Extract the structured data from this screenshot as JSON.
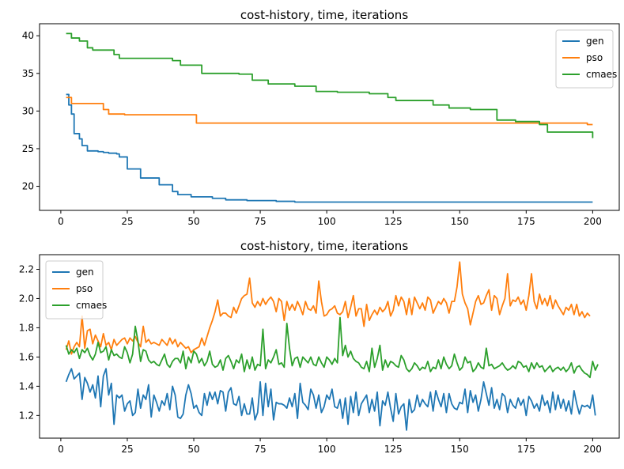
{
  "chart_data": [
    {
      "type": "line",
      "title": "cost-history, time, iterations",
      "xlabel": "",
      "ylabel": "",
      "xlim": [
        -8,
        210
      ],
      "ylim": [
        16.8,
        41.6
      ],
      "xticks": [
        "0",
        "25",
        "50",
        "75",
        "100",
        "125",
        "150",
        "175",
        "200"
      ],
      "yticks": [
        "20",
        "25",
        "30",
        "35",
        "40"
      ],
      "grid": false,
      "legend": "top-right",
      "series": [
        {
          "name": "gen",
          "color": "#1f77b4",
          "step": true,
          "points": [
            [
              2,
              32.2
            ],
            [
              3,
              30.8
            ],
            [
              4,
              29.6
            ],
            [
              5,
              27.0
            ],
            [
              7,
              26.3
            ],
            [
              8,
              25.4
            ],
            [
              10,
              24.7
            ],
            [
              14,
              24.6
            ],
            [
              16,
              24.5
            ],
            [
              18,
              24.4
            ],
            [
              21,
              24.3
            ],
            [
              22,
              23.9
            ],
            [
              25,
              22.3
            ],
            [
              30,
              21.1
            ],
            [
              37,
              20.2
            ],
            [
              42,
              19.3
            ],
            [
              44,
              18.9
            ],
            [
              49,
              18.6
            ],
            [
              57,
              18.4
            ],
            [
              62,
              18.2
            ],
            [
              70,
              18.1
            ],
            [
              81,
              18.0
            ],
            [
              88,
              17.9
            ],
            [
              200,
              17.9
            ]
          ]
        },
        {
          "name": "pso",
          "color": "#ff7f0e",
          "step": true,
          "points": [
            [
              2,
              31.8
            ],
            [
              4,
              31.0
            ],
            [
              16,
              30.2
            ],
            [
              18,
              29.6
            ],
            [
              24,
              29.5
            ],
            [
              51,
              28.4
            ],
            [
              198,
              28.2
            ],
            [
              200,
              28.2
            ]
          ]
        },
        {
          "name": "cmaes",
          "color": "#2ca02c",
          "step": true,
          "points": [
            [
              2,
              40.3
            ],
            [
              4,
              39.7
            ],
            [
              7,
              39.3
            ],
            [
              10,
              38.4
            ],
            [
              12,
              38.1
            ],
            [
              20,
              37.5
            ],
            [
              22,
              37.0
            ],
            [
              42,
              36.7
            ],
            [
              45,
              36.1
            ],
            [
              53,
              35.0
            ],
            [
              67,
              34.9
            ],
            [
              72,
              34.1
            ],
            [
              78,
              33.6
            ],
            [
              88,
              33.3
            ],
            [
              96,
              32.6
            ],
            [
              104,
              32.5
            ],
            [
              116,
              32.3
            ],
            [
              123,
              31.8
            ],
            [
              126,
              31.4
            ],
            [
              140,
              30.8
            ],
            [
              146,
              30.4
            ],
            [
              154,
              30.2
            ],
            [
              164,
              28.8
            ],
            [
              171,
              28.6
            ],
            [
              180,
              28.2
            ],
            [
              183,
              27.2
            ],
            [
              199,
              27.2
            ],
            [
              200,
              26.4
            ]
          ]
        }
      ]
    },
    {
      "type": "line",
      "title": "cost-history, time, iterations",
      "xlabel": "",
      "ylabel": "",
      "xlim": [
        -8,
        210
      ],
      "ylim": [
        1.045,
        2.3
      ],
      "xticks": [
        "0",
        "25",
        "50",
        "75",
        "100",
        "125",
        "150",
        "175",
        "200"
      ],
      "yticks": [
        "1.2",
        "1.4",
        "1.6",
        "1.8",
        "2.0",
        "2.2"
      ],
      "grid": false,
      "legend": "top-left",
      "x_start": 2,
      "series": [
        {
          "name": "gen",
          "color": "#1f77b4",
          "values": [
            1.43,
            1.48,
            1.52,
            1.45,
            1.47,
            1.49,
            1.31,
            1.46,
            1.42,
            1.36,
            1.41,
            1.32,
            1.47,
            1.26,
            1.47,
            1.52,
            1.34,
            1.42,
            1.14,
            1.34,
            1.32,
            1.34,
            1.23,
            1.28,
            1.3,
            1.2,
            1.22,
            1.38,
            1.25,
            1.34,
            1.31,
            1.41,
            1.19,
            1.34,
            1.29,
            1.23,
            1.3,
            1.27,
            1.35,
            1.24,
            1.4,
            1.34,
            1.19,
            1.18,
            1.21,
            1.34,
            1.41,
            1.35,
            1.25,
            1.27,
            1.22,
            1.2,
            1.35,
            1.27,
            1.36,
            1.31,
            1.36,
            1.28,
            1.37,
            1.36,
            1.23,
            1.36,
            1.39,
            1.28,
            1.27,
            1.33,
            1.2,
            1.28,
            1.21,
            1.21,
            1.32,
            1.17,
            1.22,
            1.43,
            1.2,
            1.42,
            1.26,
            1.38,
            1.17,
            1.29,
            1.28,
            1.28,
            1.27,
            1.25,
            1.32,
            1.26,
            1.35,
            1.18,
            1.42,
            1.29,
            1.27,
            1.24,
            1.38,
            1.34,
            1.25,
            1.34,
            1.22,
            1.26,
            1.34,
            1.31,
            1.38,
            1.26,
            1.25,
            1.31,
            1.18,
            1.32,
            1.14,
            1.33,
            1.22,
            1.36,
            1.2,
            1.28,
            1.31,
            1.34,
            1.22,
            1.31,
            1.23,
            1.36,
            1.13,
            1.3,
            1.27,
            1.36,
            1.25,
            1.16,
            1.35,
            1.21,
            1.26,
            1.28,
            1.1,
            1.31,
            1.22,
            1.24,
            1.34,
            1.26,
            1.31,
            1.28,
            1.26,
            1.36,
            1.23,
            1.37,
            1.31,
            1.26,
            1.35,
            1.22,
            1.35,
            1.28,
            1.25,
            1.24,
            1.29,
            1.28,
            1.38,
            1.22,
            1.37,
            1.29,
            1.34,
            1.23,
            1.31,
            1.43,
            1.35,
            1.27,
            1.39,
            1.25,
            1.31,
            1.24,
            1.35,
            1.33,
            1.22,
            1.31,
            1.27,
            1.25,
            1.32,
            1.27,
            1.31,
            1.2,
            1.33,
            1.3,
            1.25,
            1.28,
            1.23,
            1.34,
            1.27,
            1.3,
            1.22,
            1.36,
            1.24,
            1.34,
            1.25,
            1.31,
            1.23,
            1.3,
            1.21,
            1.37,
            1.28,
            1.21,
            1.27,
            1.26,
            1.27,
            1.25,
            1.34,
            1.2
          ]
        },
        {
          "name": "pso",
          "color": "#ff7f0e",
          "values": [
            1.65,
            1.71,
            1.62,
            1.67,
            1.7,
            1.67,
            1.88,
            1.66,
            1.78,
            1.79,
            1.69,
            1.75,
            1.71,
            1.67,
            1.76,
            1.68,
            1.7,
            1.65,
            1.72,
            1.68,
            1.7,
            1.72,
            1.73,
            1.69,
            1.73,
            1.71,
            1.74,
            1.7,
            1.67,
            1.81,
            1.7,
            1.72,
            1.69,
            1.7,
            1.69,
            1.68,
            1.72,
            1.7,
            1.68,
            1.73,
            1.69,
            1.72,
            1.67,
            1.7,
            1.68,
            1.66,
            1.67,
            1.63,
            1.65,
            1.66,
            1.67,
            1.73,
            1.68,
            1.74,
            1.8,
            1.85,
            1.91,
            1.99,
            1.88,
            1.9,
            1.9,
            1.88,
            1.87,
            1.94,
            1.9,
            1.95,
            2.0,
            2.02,
            2.03,
            2.14,
            1.97,
            1.94,
            1.98,
            1.95,
            2.0,
            1.96,
            1.99,
            2.01,
            1.98,
            1.91,
            2.0,
            1.98,
            1.85,
            1.98,
            1.92,
            1.96,
            1.92,
            1.98,
            1.94,
            1.89,
            1.98,
            1.93,
            1.92,
            1.95,
            1.9,
            2.12,
            1.98,
            1.88,
            1.89,
            1.92,
            1.93,
            1.95,
            1.9,
            1.89,
            1.91,
            1.98,
            1.87,
            1.94,
            2.02,
            1.88,
            1.93,
            1.93,
            1.81,
            1.96,
            1.85,
            1.89,
            1.92,
            1.89,
            1.94,
            1.91,
            1.93,
            1.98,
            1.88,
            1.92,
            2.02,
            1.95,
            2.01,
            1.98,
            1.89,
            2.0,
            1.89,
            2.01,
            1.97,
            1.93,
            1.97,
            1.92,
            2.01,
            1.99,
            1.9,
            1.94,
            1.98,
            1.96,
            2.0,
            1.97,
            1.9,
            1.98,
            1.98,
            2.08,
            2.25,
            2.03,
            1.97,
            1.93,
            1.82,
            1.9,
            1.98,
            2.02,
            1.96,
            1.97,
            2.02,
            2.06,
            1.92,
            2.02,
            2.0,
            1.89,
            1.95,
            2.0,
            2.17,
            1.95,
            1.99,
            1.98,
            2.01,
            1.96,
            1.99,
            1.92,
            2.02,
            2.17,
            1.98,
            1.93,
            2.03,
            1.96,
            2.0,
            1.95,
            2.02,
            1.93,
            1.99,
            1.95,
            1.92,
            1.89,
            1.94,
            1.92,
            1.96,
            1.89,
            1.96,
            1.88,
            1.91,
            1.87,
            1.9,
            1.88
          ]
        },
        {
          "name": "cmaes",
          "color": "#2ca02c",
          "values": [
            1.68,
            1.62,
            1.65,
            1.63,
            1.66,
            1.59,
            1.65,
            1.63,
            1.66,
            1.61,
            1.58,
            1.62,
            1.7,
            1.63,
            1.64,
            1.67,
            1.58,
            1.65,
            1.61,
            1.62,
            1.6,
            1.59,
            1.67,
            1.63,
            1.56,
            1.62,
            1.81,
            1.71,
            1.57,
            1.65,
            1.64,
            1.58,
            1.56,
            1.57,
            1.55,
            1.54,
            1.58,
            1.62,
            1.55,
            1.53,
            1.57,
            1.59,
            1.59,
            1.56,
            1.64,
            1.52,
            1.6,
            1.56,
            1.64,
            1.62,
            1.56,
            1.59,
            1.54,
            1.57,
            1.64,
            1.55,
            1.53,
            1.54,
            1.58,
            1.51,
            1.59,
            1.61,
            1.57,
            1.52,
            1.58,
            1.56,
            1.62,
            1.5,
            1.58,
            1.52,
            1.6,
            1.51,
            1.55,
            1.54,
            1.79,
            1.52,
            1.58,
            1.56,
            1.6,
            1.65,
            1.55,
            1.56,
            1.53,
            1.83,
            1.66,
            1.54,
            1.59,
            1.6,
            1.53,
            1.6,
            1.58,
            1.56,
            1.6,
            1.55,
            1.54,
            1.6,
            1.56,
            1.53,
            1.6,
            1.58,
            1.55,
            1.59,
            1.56,
            1.87,
            1.61,
            1.68,
            1.6,
            1.64,
            1.59,
            1.57,
            1.56,
            1.53,
            1.52,
            1.57,
            1.5,
            1.66,
            1.53,
            1.59,
            1.68,
            1.51,
            1.58,
            1.53,
            1.57,
            1.56,
            1.54,
            1.53,
            1.61,
            1.58,
            1.52,
            1.5,
            1.52,
            1.56,
            1.54,
            1.51,
            1.53,
            1.52,
            1.57,
            1.5,
            1.53,
            1.52,
            1.58,
            1.52,
            1.6,
            1.55,
            1.52,
            1.54,
            1.62,
            1.56,
            1.51,
            1.53,
            1.6,
            1.56,
            1.57,
            1.5,
            1.52,
            1.56,
            1.53,
            1.52,
            1.66,
            1.54,
            1.55,
            1.52,
            1.53,
            1.54,
            1.56,
            1.53,
            1.51,
            1.52,
            1.54,
            1.52,
            1.57,
            1.56,
            1.53,
            1.54,
            1.5,
            1.56,
            1.52,
            1.56,
            1.53,
            1.54,
            1.5,
            1.52,
            1.54,
            1.5,
            1.52,
            1.53,
            1.51,
            1.53,
            1.5,
            1.52,
            1.56,
            1.49,
            1.53,
            1.54,
            1.51,
            1.49,
            1.48,
            1.46,
            1.57,
            1.51,
            1.55
          ]
        }
      ]
    }
  ]
}
